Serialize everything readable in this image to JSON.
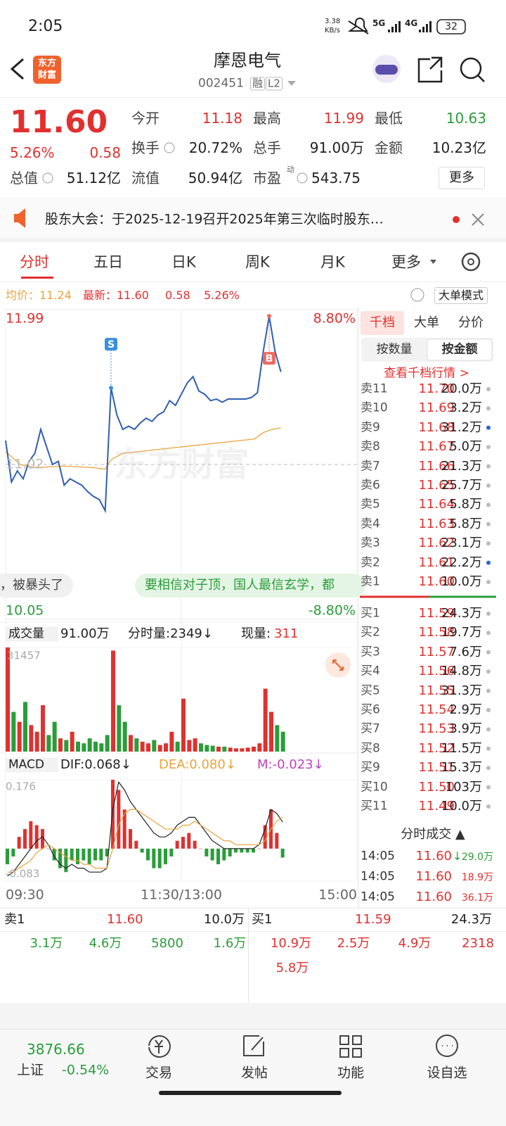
{
  "status": {
    "time": "2:05",
    "speed": "3.38",
    "speed_unit": "KB/s",
    "net1": "5G",
    "net2": "4G",
    "battery": "32"
  },
  "header": {
    "logo": [
      "东方",
      "财富"
    ],
    "title": "摩恩电气",
    "code": "002451",
    "tags": [
      "融",
      "L2"
    ]
  },
  "quote": {
    "price": "11.60",
    "change_pct": "5.26%",
    "change": "0.58",
    "fields": [
      {
        "label": "今开",
        "value": "11.18"
      },
      {
        "label": "最高",
        "value": "11.99"
      },
      {
        "label": "最低",
        "value": "10.63"
      },
      {
        "label": "换手",
        "value": "20.72%"
      },
      {
        "label": "总手",
        "value": "91.00万"
      },
      {
        "label": "金额",
        "value": "10.23亿"
      },
      {
        "label": "总值",
        "value": "51.12亿"
      },
      {
        "label": "流值",
        "value": "50.94亿"
      },
      {
        "label": "市盈",
        "sup": "动",
        "value": "543.75"
      }
    ],
    "more": "更多"
  },
  "notice": "股东大会：于2025-12-19召开2025年第三次临时股东…",
  "tabs": [
    "分时",
    "五日",
    "日K",
    "周K",
    "月K",
    "更多"
  ],
  "info": {
    "avg": "均价：11.24",
    "latest": "最新：11.60",
    "change": "0.58",
    "change_pct": "5.26%",
    "mode": "大单模式"
  },
  "comments": [
    "，被暴头了",
    "要相信对子顶，国人最信玄学，都"
  ],
  "chart_data": [
    {
      "type": "line",
      "watermark": "东方财富",
      "x": [
        0,
        4,
        8,
        12,
        16,
        20,
        24,
        28,
        32,
        36,
        40,
        44,
        48,
        52,
        56,
        60,
        64,
        68,
        72,
        76,
        80,
        84,
        88,
        92,
        96,
        100,
        104,
        108,
        112,
        116,
        120,
        124,
        128,
        132,
        136,
        140,
        144,
        148,
        152,
        156,
        160,
        164,
        168,
        172,
        176,
        180,
        184,
        188
      ],
      "xlim": [
        0,
        240
      ],
      "xticks": [
        {
          "value": 0,
          "label": "09:30"
        },
        {
          "value": 120,
          "label": "11:30/13:00"
        },
        {
          "value": 240,
          "label": "15:00"
        }
      ],
      "ylim": [
        10.05,
        11.99
      ],
      "yticks": [
        10.05,
        11.02,
        11.99
      ],
      "y2lim": [
        -8.8,
        8.8
      ],
      "y2ticks": [
        {
          "value": -8.8,
          "label": "-8.80%"
        },
        {
          "value": 8.8,
          "label": "8.80%"
        }
      ],
      "series": [
        {
          "color": "#2f5fb0",
          "values": [
            11.17,
            10.91,
            10.98,
            10.93,
            11.04,
            11.09,
            11.24,
            11.13,
            11.02,
            11.04,
            10.89,
            10.93,
            10.91,
            10.89,
            10.85,
            10.82,
            10.8,
            10.73,
            11.5,
            11.33,
            11.24,
            11.26,
            11.24,
            11.28,
            11.31,
            11.29,
            11.33,
            11.35,
            11.42,
            11.39,
            11.46,
            11.53,
            11.57,
            11.48,
            11.46,
            11.42,
            11.43,
            11.41,
            11.43,
            11.43,
            11.43,
            11.43,
            11.44,
            11.47,
            11.73,
            11.95,
            11.73,
            11.6
          ]
        },
        {
          "color": "#e9a33c",
          "x": [
            0,
            10,
            20,
            40,
            60,
            68,
            72,
            80,
            100,
            120,
            140,
            160,
            170,
            176,
            182,
            188
          ],
          "values": [
            11.1,
            11.02,
            11.0,
            11.01,
            11.0,
            10.99,
            11.05,
            11.09,
            11.11,
            11.13,
            11.15,
            11.17,
            11.18,
            11.22,
            11.24,
            11.25
          ]
        }
      ],
      "markers": [
        {
          "label": "S",
          "x": 72,
          "value": 11.5,
          "color": "#3a8fe0"
        },
        {
          "label": "B",
          "x": 180,
          "value": 11.95,
          "color": "#f06a5e"
        }
      ]
    },
    {
      "type": "bar",
      "title": "成交量",
      "total": "91.00万",
      "minute_volume": "分时量:2349↓",
      "current_label": "现量:",
      "current": "311",
      "x": [
        0,
        4,
        8,
        12,
        16,
        20,
        24,
        28,
        32,
        36,
        40,
        44,
        48,
        52,
        56,
        60,
        64,
        68,
        72,
        76,
        80,
        84,
        88,
        92,
        96,
        100,
        104,
        108,
        112,
        116,
        120,
        124,
        128,
        132,
        136,
        140,
        144,
        148,
        152,
        156,
        160,
        164,
        168,
        172,
        176,
        180,
        184,
        188
      ],
      "xlim": [
        0,
        240
      ],
      "ylim": [
        0,
        31457
      ],
      "yticks": [
        31457
      ],
      "values": [
        31457,
        12000,
        9000,
        15000,
        8000,
        6000,
        14000,
        5000,
        9000,
        4000,
        3500,
        6000,
        3000,
        2500,
        4000,
        3000,
        2500,
        5000,
        30500,
        14000,
        9000,
        5000,
        4000,
        3000,
        2500,
        3500,
        2000,
        2500,
        6000,
        3000,
        16000,
        3500,
        4000,
        2500,
        2000,
        1800,
        1500,
        1500,
        1200,
        1000,
        1000,
        1200,
        1500,
        2500,
        19000,
        12000,
        8000,
        6000
      ],
      "colors": [
        "#e0312f",
        "#2a9d3a"
      ]
    },
    {
      "type": "macd",
      "title": "MACD",
      "labels": [
        "DIF:0.068↓",
        "DEA:0.080↓",
        "M:-0.023↓"
      ],
      "label_colors": [
        "#222222",
        "#e9a33c",
        "#c040c0"
      ],
      "x": [
        0,
        4,
        8,
        12,
        16,
        20,
        24,
        28,
        32,
        36,
        40,
        44,
        48,
        52,
        56,
        60,
        64,
        68,
        72,
        76,
        80,
        84,
        88,
        92,
        96,
        100,
        104,
        108,
        112,
        116,
        120,
        124,
        128,
        132,
        136,
        140,
        144,
        148,
        152,
        156,
        160,
        164,
        168,
        172,
        176,
        180,
        184,
        188
      ],
      "xlim": [
        0,
        240
      ],
      "ylim": [
        -0.083,
        0.176
      ],
      "yticks": [
        -0.083,
        0.176
      ],
      "series": [
        {
          "color": "#222222",
          "values": [
            -0.07,
            -0.06,
            -0.04,
            -0.02,
            0.0,
            0.02,
            0.03,
            0.01,
            -0.02,
            -0.04,
            -0.05,
            -0.04,
            -0.05,
            -0.05,
            -0.06,
            -0.06,
            -0.06,
            -0.05,
            0.1,
            0.17,
            0.15,
            0.12,
            0.1,
            0.08,
            0.06,
            0.04,
            0.03,
            0.03,
            0.04,
            0.06,
            0.07,
            0.08,
            0.08,
            0.06,
            0.04,
            0.02,
            0.01,
            0.0,
            0.0,
            0.0,
            0.0,
            0.0,
            0.0,
            0.01,
            0.05,
            0.1,
            0.09,
            0.068
          ]
        },
        {
          "color": "#e9a33c",
          "values": [
            -0.06,
            -0.06,
            -0.05,
            -0.04,
            -0.03,
            -0.01,
            0.0,
            0.01,
            0.0,
            -0.01,
            -0.02,
            -0.03,
            -0.03,
            -0.04,
            -0.04,
            -0.05,
            -0.05,
            -0.05,
            0.0,
            0.06,
            0.09,
            0.1,
            0.1,
            0.09,
            0.08,
            0.07,
            0.06,
            0.05,
            0.05,
            0.05,
            0.06,
            0.06,
            0.07,
            0.06,
            0.05,
            0.04,
            0.03,
            0.02,
            0.02,
            0.01,
            0.01,
            0.01,
            0.01,
            0.01,
            0.02,
            0.05,
            0.07,
            0.08
          ]
        }
      ],
      "values": [
        -0.04,
        -0.02,
        0.03,
        0.05,
        0.07,
        0.06,
        0.05,
        0.0,
        -0.03,
        -0.05,
        -0.06,
        -0.03,
        -0.04,
        -0.03,
        -0.04,
        -0.03,
        -0.03,
        -0.02,
        0.176,
        0.15,
        0.1,
        0.05,
        0.02,
        -0.01,
        -0.03,
        -0.05,
        -0.05,
        -0.04,
        -0.02,
        0.02,
        0.03,
        0.04,
        0.02,
        0.0,
        -0.02,
        -0.03,
        -0.04,
        -0.03,
        -0.02,
        -0.01,
        -0.01,
        -0.01,
        -0.01,
        0.0,
        0.06,
        0.1,
        0.04,
        -0.023
      ],
      "colors": [
        "#e0312f",
        "#2a9d3a"
      ]
    }
  ],
  "depth": {
    "tabs": [
      "千档",
      "大单",
      "分价"
    ],
    "modes": [
      "按数量",
      "按金额"
    ],
    "link": "查看千档行情 >",
    "asks": [
      {
        "label": "卖11",
        "price": "11.70",
        "volume": "20.0万"
      },
      {
        "label": "卖10",
        "price": "11.69",
        "volume": "3.2万"
      },
      {
        "label": "卖9",
        "price": "11.68",
        "volume": "31.2万"
      },
      {
        "label": "卖8",
        "price": "11.67",
        "volume": "5.0万"
      },
      {
        "label": "卖7",
        "price": "11.66",
        "volume": "21.3万"
      },
      {
        "label": "卖6",
        "price": "11.65",
        "volume": "25.7万"
      },
      {
        "label": "卖5",
        "price": "11.64",
        "volume": "5.8万"
      },
      {
        "label": "卖4",
        "price": "11.63",
        "volume": "5.8万"
      },
      {
        "label": "卖3",
        "price": "11.62",
        "volume": "23.1万"
      },
      {
        "label": "卖2",
        "price": "11.61",
        "volume": "22.2万"
      },
      {
        "label": "卖1",
        "price": "11.60",
        "volume": "10.0万"
      }
    ],
    "bids": [
      {
        "label": "买1",
        "price": "11.59",
        "volume": "24.3万"
      },
      {
        "label": "买2",
        "price": "11.58",
        "volume": "19.7万"
      },
      {
        "label": "买3",
        "price": "11.57",
        "volume": "7.6万"
      },
      {
        "label": "买4",
        "price": "11.56",
        "volume": "14.8万"
      },
      {
        "label": "买5",
        "price": "11.55",
        "volume": "31.3万"
      },
      {
        "label": "买6",
        "price": "11.54",
        "volume": "2.9万"
      },
      {
        "label": "买7",
        "price": "11.53",
        "volume": "3.9万"
      },
      {
        "label": "买8",
        "price": "11.52",
        "volume": "11.5万"
      },
      {
        "label": "买9",
        "price": "11.51",
        "volume": "15.3万"
      },
      {
        "label": "买10",
        "price": "11.50",
        "volume": "103万"
      },
      {
        "label": "买11",
        "price": "11.49",
        "volume": "10.0万"
      }
    ]
  },
  "trades": {
    "title": "分时成交 ▲",
    "rows": [
      {
        "time": "14:05",
        "price": "11.60",
        "flag": "↓",
        "volume": "29.0万",
        "color": "#2a9d3a"
      },
      {
        "time": "14:05",
        "price": "11.60",
        "volume": "18.9万",
        "color": "#e0312f"
      },
      {
        "time": "14:05",
        "price": "11.60",
        "volume": "36.1万",
        "color": "#e0312f"
      }
    ]
  },
  "bottom": {
    "ask": [
      "卖1",
      "11.60",
      "10.0万"
    ],
    "bid": [
      "买1",
      "11.59",
      "24.3万"
    ],
    "ask_orders": [
      "3.1万",
      "4.6万",
      "5800",
      "1.6万"
    ],
    "bid_orders": [
      "10.9万",
      "2.5万",
      "4.9万",
      "2318",
      "5.8万"
    ]
  },
  "nav": {
    "index_value": "3876.66",
    "index_name": "上证",
    "index_change": "-0.54%",
    "items": [
      "交易",
      "发帖",
      "功能",
      "设自选"
    ]
  }
}
